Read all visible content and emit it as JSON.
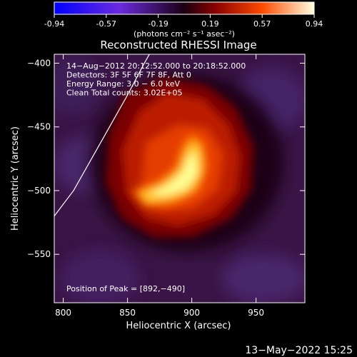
{
  "colorbar": {
    "ticks": [
      "-0.94",
      "-0.57",
      "-0.19",
      "0.19",
      "0.57",
      "0.94"
    ],
    "unit_label": "(photons cm⁻² s⁻¹ asec⁻²)",
    "range": [
      -0.94,
      0.94
    ]
  },
  "chart_data": {
    "type": "heatmap",
    "title": "Reconstructed RHESSI Image",
    "xlabel": "Heliocentric X (arcsec)",
    "ylabel": "Heliocentric Y (arcsec)",
    "xlim": [
      793,
      988
    ],
    "ylim": [
      -588,
      -393
    ],
    "x_ticks": [
      800,
      850,
      900,
      950
    ],
    "y_ticks": [
      -400,
      -450,
      -500,
      -550
    ],
    "x_tick_labels": [
      "800",
      "850",
      "900",
      "950"
    ],
    "y_tick_labels": [
      "−400",
      "−450",
      "−500",
      "−550"
    ],
    "annotations": [
      "14−Aug−2012 20:12:52.000 to 20:18:52.000",
      "Detectors: 3F 5F 6F 7F 8F, Att 0",
      "Energy Range: 3.0 − 6.0 keV",
      "Clean     Total counts: 3.02E+05"
    ],
    "peak_label": "Position of Peak = [892,−490]",
    "peak": [
      892,
      -490
    ],
    "limb_curve": [
      [
        793,
        -520
      ],
      [
        808,
        -500
      ],
      [
        822,
        -475
      ],
      [
        836,
        -450
      ],
      [
        850,
        -425
      ],
      [
        862,
        -402
      ],
      [
        867,
        -393
      ]
    ]
  },
  "footer": {
    "timestamp": "13−May−2022 15:25"
  }
}
